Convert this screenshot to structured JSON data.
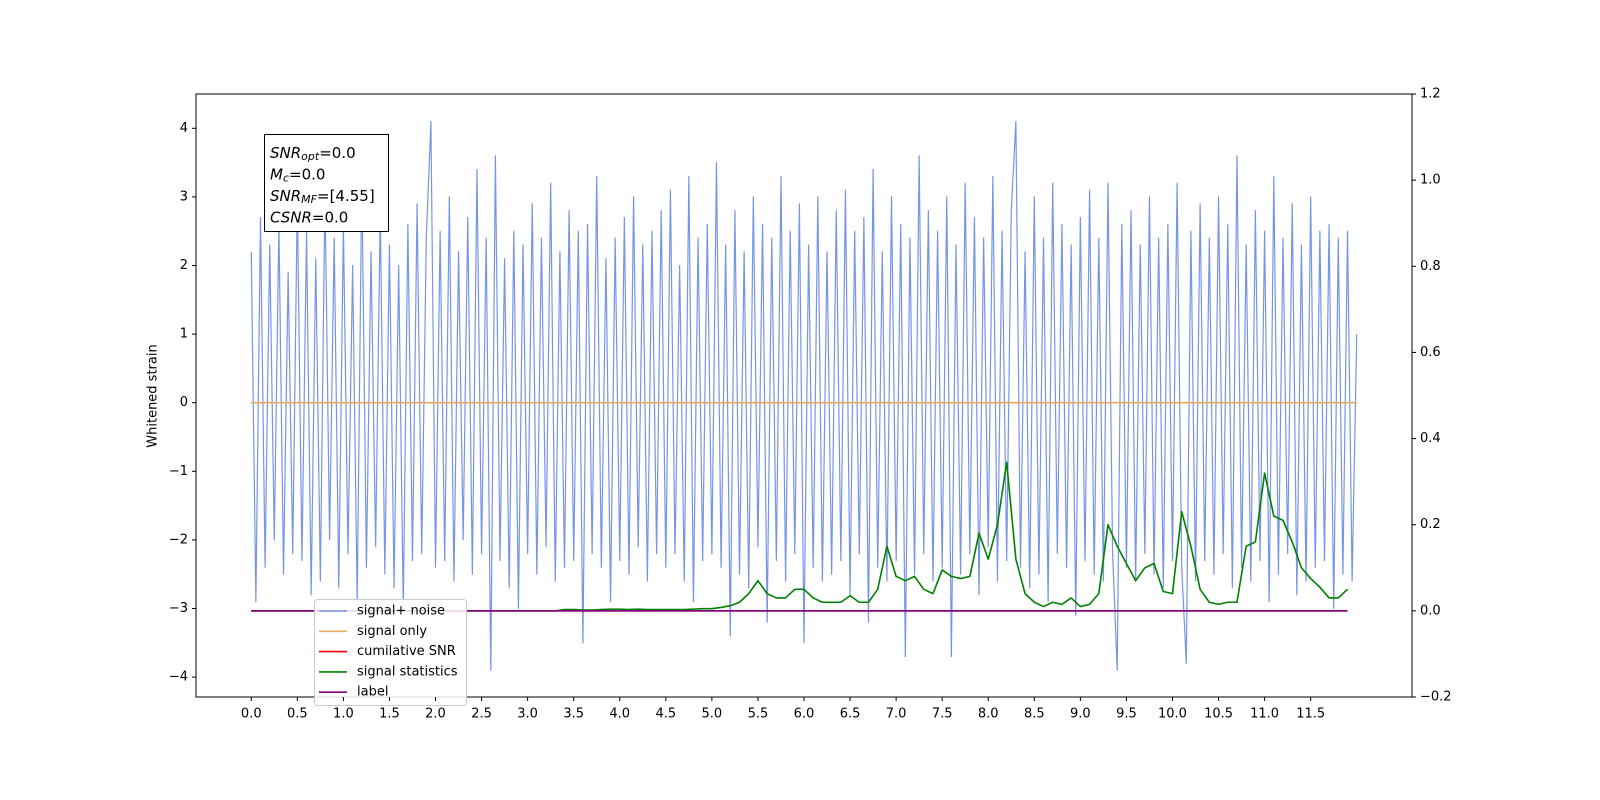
{
  "chart_data": {
    "type": "line",
    "ylabel": "Whitened strain",
    "annotation": [
      {
        "base": "SNR",
        "sub": "opt",
        "text": "=0.0"
      },
      {
        "base": "M",
        "sub": "c",
        "text": "=0.0"
      },
      {
        "base": "SNR",
        "sub": "MF",
        "text": "=[4.55]"
      },
      {
        "base": "CSNR",
        "sub": null,
        "text": "=0.0"
      }
    ],
    "xlim": [
      -0.6,
      12.6
    ],
    "xticks": [
      {
        "value": 0,
        "label": "0.0"
      },
      {
        "value": 0.5,
        "label": "0.5"
      },
      {
        "value": 1,
        "label": "1.0"
      },
      {
        "value": 1.5,
        "label": "1.5"
      },
      {
        "value": 2,
        "label": "2.0"
      },
      {
        "value": 2.5,
        "label": "2.5"
      },
      {
        "value": 3,
        "label": "3.0"
      },
      {
        "value": 3.5,
        "label": "3.5"
      },
      {
        "value": 4,
        "label": "4.0"
      },
      {
        "value": 4.5,
        "label": "4.5"
      },
      {
        "value": 5,
        "label": "5.0"
      },
      {
        "value": 5.5,
        "label": "5.5"
      },
      {
        "value": 6,
        "label": "6.0"
      },
      {
        "value": 6.5,
        "label": "6.5"
      },
      {
        "value": 7,
        "label": "7.0"
      },
      {
        "value": 7.5,
        "label": "7.5"
      },
      {
        "value": 8,
        "label": "8.0"
      },
      {
        "value": 8.5,
        "label": "8.5"
      },
      {
        "value": 9,
        "label": "9.0"
      },
      {
        "value": 9.5,
        "label": "9.5"
      },
      {
        "value": 10,
        "label": "10.0"
      },
      {
        "value": 10.5,
        "label": "10.5"
      },
      {
        "value": 11,
        "label": "11.0"
      },
      {
        "value": 11.5,
        "label": "11.5"
      }
    ],
    "ylim": [
      -4.29,
      4.5
    ],
    "yticks": [
      {
        "value": -4,
        "label": "−4"
      },
      {
        "value": -3,
        "label": "−3"
      },
      {
        "value": -2,
        "label": "−2"
      },
      {
        "value": -1,
        "label": "−1"
      },
      0,
      1,
      2,
      3,
      4
    ],
    "y2lim": [
      -0.2,
      1.2
    ],
    "y2ticks": [
      {
        "value": -0.2,
        "label": "−0.2"
      },
      {
        "value": 0,
        "label": "0.0"
      },
      0.2,
      0.4,
      0.6,
      0.8,
      {
        "value": 1,
        "label": "1.0"
      },
      1.2
    ],
    "legend": "lower left",
    "series": [
      {
        "name": "signal+ noise",
        "color": "#7894e8",
        "x": [
          0,
          0.05,
          0.1,
          0.15,
          0.2,
          0.25,
          0.3,
          0.35,
          0.4,
          0.45,
          0.5,
          0.55,
          0.6,
          0.65,
          0.7,
          0.75,
          0.8,
          0.85,
          0.9,
          0.95,
          1,
          1.05,
          1.1,
          1.15,
          1.2,
          1.25,
          1.3,
          1.35,
          1.4,
          1.45,
          1.5,
          1.55,
          1.6,
          1.65,
          1.7,
          1.75,
          1.8,
          1.85,
          1.9,
          1.95,
          2,
          2.05,
          2.1,
          2.15,
          2.2,
          2.25,
          2.3,
          2.35,
          2.4,
          2.45,
          2.5,
          2.55,
          2.6,
          2.65,
          2.7,
          2.75,
          2.8,
          2.85,
          2.9,
          2.95,
          3,
          3.05,
          3.1,
          3.15,
          3.2,
          3.25,
          3.3,
          3.35,
          3.4,
          3.45,
          3.5,
          3.55,
          3.6,
          3.65,
          3.7,
          3.75,
          3.8,
          3.85,
          3.9,
          3.95,
          4,
          4.05,
          4.1,
          4.15,
          4.2,
          4.25,
          4.3,
          4.35,
          4.4,
          4.45,
          4.5,
          4.55,
          4.6,
          4.65,
          4.7,
          4.75,
          4.8,
          4.85,
          4.9,
          4.95,
          5,
          5.05,
          5.1,
          5.15,
          5.2,
          5.25,
          5.3,
          5.35,
          5.4,
          5.45,
          5.5,
          5.55,
          5.6,
          5.65,
          5.7,
          5.75,
          5.8,
          5.85,
          5.9,
          5.95,
          6,
          6.05,
          6.1,
          6.15,
          6.2,
          6.25,
          6.3,
          6.35,
          6.4,
          6.45,
          6.5,
          6.55,
          6.6,
          6.65,
          6.7,
          6.75,
          6.8,
          6.85,
          6.9,
          6.95,
          7,
          7.05,
          7.1,
          7.15,
          7.2,
          7.25,
          7.3,
          7.35,
          7.4,
          7.45,
          7.5,
          7.55,
          7.6,
          7.65,
          7.7,
          7.75,
          7.8,
          7.85,
          7.9,
          7.95,
          8,
          8.05,
          8.1,
          8.15,
          8.2,
          8.25,
          8.3,
          8.35,
          8.4,
          8.45,
          8.5,
          8.55,
          8.6,
          8.65,
          8.7,
          8.75,
          8.8,
          8.85,
          8.9,
          8.95,
          9,
          9.05,
          9.1,
          9.15,
          9.2,
          9.25,
          9.3,
          9.35,
          9.4,
          9.45,
          9.5,
          9.55,
          9.6,
          9.65,
          9.7,
          9.75,
          9.8,
          9.85,
          9.9,
          9.95,
          10,
          10.05,
          10.1,
          10.15,
          10.2,
          10.25,
          10.3,
          10.35,
          10.4,
          10.45,
          10.5,
          10.55,
          10.6,
          10.65,
          10.7,
          10.75,
          10.8,
          10.85,
          10.9,
          10.95,
          11,
          11.05,
          11.1,
          11.15,
          11.2,
          11.25,
          11.3,
          11.35,
          11.4,
          11.45,
          11.5,
          11.55,
          11.6,
          11.65,
          11.7,
          11.75,
          11.8,
          11.85,
          11.9,
          11.95,
          12
        ],
        "values": [
          2.2,
          -2.9,
          2.7,
          -2.4,
          2.3,
          -2.0,
          2.6,
          -2.5,
          1.9,
          -2.2,
          3.0,
          -2.3,
          2.5,
          -2.8,
          2.1,
          -2.6,
          3.1,
          -2.0,
          2.4,
          -2.7,
          2.6,
          -2.2,
          2.0,
          -2.9,
          3.3,
          -2.4,
          2.2,
          -2.1,
          2.8,
          -2.5,
          2.3,
          -2.7,
          2.0,
          -3.0,
          2.6,
          -2.3,
          2.9,
          -2.2,
          2.4,
          4.1,
          -2.4,
          2.5,
          -2.3,
          3.0,
          -2.6,
          2.2,
          -2.0,
          2.7,
          -2.5,
          3.4,
          -2.2,
          2.4,
          -3.9,
          3.6,
          -2.3,
          2.1,
          -2.7,
          2.5,
          -3.0,
          2.3,
          -2.2,
          2.9,
          -2.5,
          2.4,
          -2.1,
          3.2,
          -2.6,
          2.2,
          -2.4,
          2.8,
          -2.3,
          2.5,
          -3.5,
          2.6,
          -2.2,
          3.3,
          -2.4,
          2.1,
          -2.9,
          2.4,
          -2.3,
          2.7,
          -2.5,
          3.0,
          -2.1,
          2.3,
          -2.6,
          2.5,
          -2.2,
          2.8,
          -2.4,
          3.1,
          -2.2,
          2.0,
          -2.6,
          3.3,
          -2.9,
          2.4,
          -2.3,
          2.6,
          -2.2,
          3.5,
          -2.4,
          2.3,
          -3.4,
          2.8,
          -2.5,
          2.2,
          -2.7,
          3.0,
          -2.1,
          2.6,
          -3.2,
          2.4,
          -2.3,
          3.3,
          -2.6,
          2.5,
          -2.2,
          2.9,
          -3.5,
          2.3,
          -2.4,
          3.0,
          -2.6,
          2.2,
          -2.5,
          2.8,
          -2.3,
          3.1,
          -2.8,
          2.5,
          -2.2,
          2.7,
          -3.2,
          3.4,
          -2.4,
          2.2,
          -2.6,
          3.0,
          -2.3,
          2.6,
          -3.7,
          2.4,
          -2.5,
          3.6,
          -2.2,
          2.8,
          -2.6,
          2.5,
          -2.4,
          3.0,
          -3.7,
          2.3,
          -2.5,
          3.2,
          -2.2,
          2.7,
          -2.8,
          2.4,
          -2.1,
          3.3,
          -2.6,
          2.5,
          -2.3,
          2.8,
          4.1,
          -2.4,
          2.2,
          -2.7,
          3.0,
          -2.5,
          2.4,
          -2.9,
          3.2,
          -2.2,
          2.6,
          -2.4,
          2.3,
          -3.1,
          2.7,
          -2.3,
          3.1,
          -2.5,
          2.4,
          -2.6,
          3.2,
          -2.2,
          -3.9,
          2.6,
          -2.4,
          2.8,
          -2.6,
          2.3,
          -2.2,
          3.0,
          -2.5,
          2.4,
          -2.7,
          2.6,
          -2.3,
          3.2,
          -2.4,
          -3.8,
          2.5,
          -2.6,
          2.9,
          -2.3,
          2.4,
          -2.5,
          3.0,
          -2.2,
          2.6,
          -2.7,
          3.6,
          -2.4,
          2.3,
          -2.6,
          2.8,
          -2.3,
          2.5,
          -2.9,
          3.3,
          -2.5,
          2.4,
          -2.2,
          2.9,
          -2.8,
          2.3,
          -2.6,
          3.0,
          -2.4,
          2.5,
          -2.3,
          2.6,
          -3.0,
          2.4,
          -2.5,
          2.5,
          -2.6,
          1.0
        ]
      },
      {
        "name": "signal only",
        "color": "#e8a860",
        "x": [
          0,
          12
        ],
        "values": [
          0,
          0
        ]
      },
      {
        "name": "cumilative SNR",
        "color": "red",
        "axis": "y2",
        "x": [
          0,
          11.9
        ],
        "values": [
          0,
          0
        ]
      },
      {
        "name": "signal statistics",
        "color": "green",
        "axis": "y2",
        "x": [
          0,
          0.1,
          0.2,
          0.3,
          0.4,
          0.5,
          0.6,
          0.7,
          0.8,
          0.9,
          1,
          1.1,
          1.2,
          1.3,
          1.4,
          1.5,
          1.6,
          1.7,
          1.8,
          1.9,
          2,
          2.1,
          2.2,
          2.3,
          2.4,
          2.5,
          2.6,
          2.7,
          2.8,
          2.9,
          3,
          3.1,
          3.2,
          3.3,
          3.4,
          3.5,
          3.6,
          3.7,
          3.8,
          3.9,
          4,
          4.1,
          4.2,
          4.3,
          4.4,
          4.5,
          4.6,
          4.7,
          4.8,
          4.9,
          5,
          5.1,
          5.2,
          5.3,
          5.4,
          5.5,
          5.6,
          5.7,
          5.8,
          5.9,
          6,
          6.1,
          6.2,
          6.3,
          6.4,
          6.5,
          6.6,
          6.7,
          6.8,
          6.9,
          7,
          7.1,
          7.2,
          7.3,
          7.4,
          7.5,
          7.6,
          7.7,
          7.8,
          7.9,
          8,
          8.1,
          8.2,
          8.3,
          8.4,
          8.5,
          8.6,
          8.7,
          8.8,
          8.9,
          9,
          9.1,
          9.2,
          9.3,
          9.4,
          9.5,
          9.6,
          9.7,
          9.8,
          9.9,
          10,
          10.1,
          10.2,
          10.3,
          10.4,
          10.5,
          10.6,
          10.7,
          10.8,
          10.9,
          11,
          11.1,
          11.2,
          11.3,
          11.4,
          11.5,
          11.6,
          11.7,
          11.8,
          11.9
        ],
        "values": [
          0,
          0,
          0,
          0,
          0,
          0,
          0,
          0,
          0,
          0,
          0,
          0,
          0,
          0,
          0,
          0,
          0,
          0,
          0,
          0,
          0,
          0,
          0,
          0,
          0,
          0,
          0,
          0,
          0,
          0,
          0,
          0,
          0,
          0,
          0.003,
          0.003,
          0.002,
          0.002,
          0.003,
          0.004,
          0.004,
          0.003,
          0.004,
          0.003,
          0.003,
          0.003,
          0.003,
          0.003,
          0.004,
          0.005,
          0.005,
          0.008,
          0.012,
          0.02,
          0.04,
          0.07,
          0.04,
          0.03,
          0.03,
          0.05,
          0.05,
          0.03,
          0.02,
          0.02,
          0.02,
          0.035,
          0.02,
          0.02,
          0.05,
          0.15,
          0.08,
          0.07,
          0.08,
          0.05,
          0.04,
          0.095,
          0.08,
          0.075,
          0.08,
          0.18,
          0.12,
          0.2,
          0.345,
          0.12,
          0.04,
          0.02,
          0.01,
          0.02,
          0.015,
          0.03,
          0.01,
          0.015,
          0.04,
          0.2,
          0.15,
          0.11,
          0.07,
          0.1,
          0.11,
          0.045,
          0.04,
          0.23,
          0.15,
          0.05,
          0.02,
          0.015,
          0.02,
          0.02,
          0.15,
          0.16,
          0.32,
          0.22,
          0.21,
          0.16,
          0.1,
          0.075,
          0.055,
          0.03,
          0.03,
          0.05
        ]
      },
      {
        "name": "label",
        "color": "purple",
        "axis": "y2",
        "x": [
          0,
          11.9
        ],
        "values": [
          0,
          0
        ]
      }
    ]
  }
}
